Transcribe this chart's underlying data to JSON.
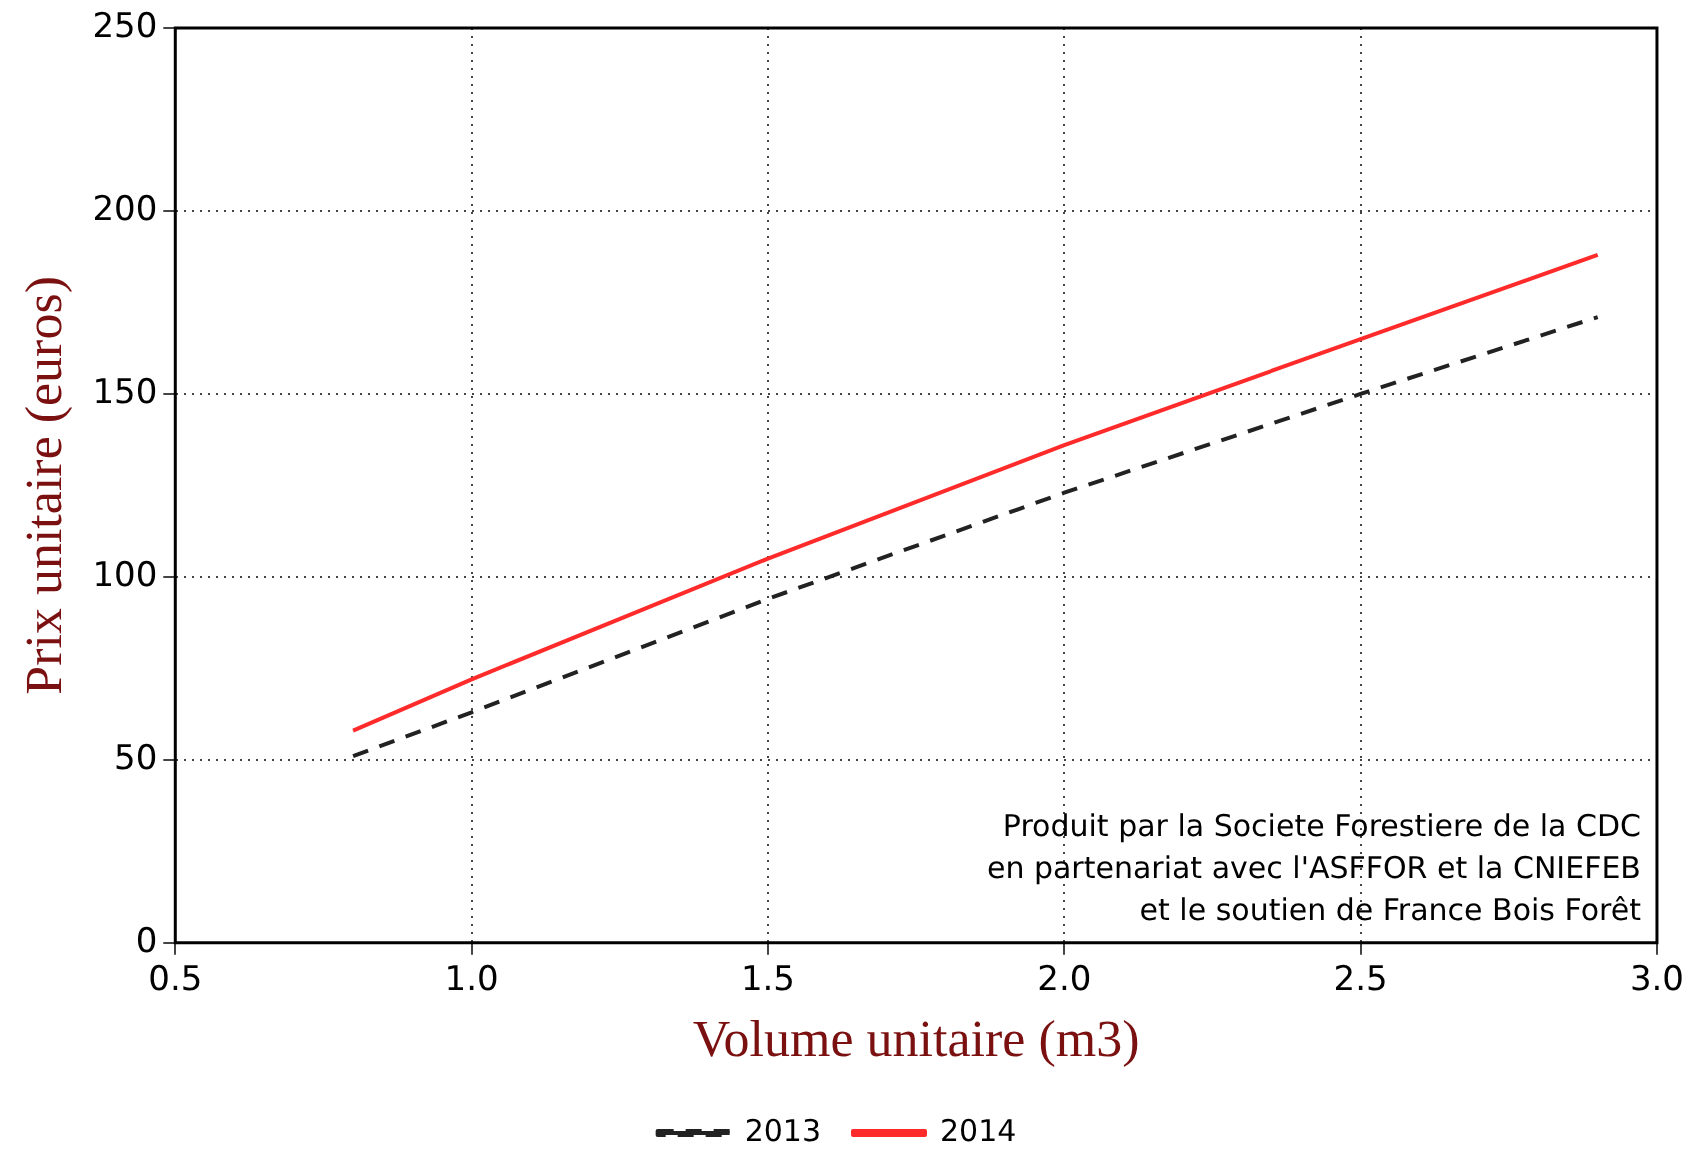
{
  "chart_data": {
    "type": "line",
    "xlabel": "Volume unitaire (m3)",
    "ylabel": "Prix unitaire (euros)",
    "x": [
      0.8,
      1.0,
      1.5,
      2.0,
      2.5,
      2.9
    ],
    "series": [
      {
        "name": "2013",
        "color": "#222222",
        "line_style": "dashed",
        "values": [
          51,
          63,
          94,
          123,
          150,
          171
        ]
      },
      {
        "name": "2014",
        "color": "#ff2a2a",
        "line_style": "solid",
        "values": [
          58,
          72,
          105,
          136,
          165,
          188
        ]
      }
    ],
    "xlim": [
      0.5,
      3.0
    ],
    "xticks": [
      {
        "value": 0.5,
        "label": "0.5"
      },
      {
        "value": 1.0,
        "label": "1.0"
      },
      {
        "value": 1.5,
        "label": "1.5"
      },
      {
        "value": 2.0,
        "label": "2.0"
      },
      {
        "value": 2.5,
        "label": "2.5"
      },
      {
        "value": 3.0,
        "label": "3.0"
      }
    ],
    "ylim": [
      0,
      250
    ],
    "yticks": [
      0,
      50,
      100,
      150,
      200,
      250
    ],
    "grid": true,
    "legend": "bottom",
    "marker": "none",
    "annotations": [
      "Produit par la Societe Forestiere de la CDC\nen partenariat avec l'ASFFOR et la CNIEFEB\net le soutien de France Bois Forêt"
    ]
  }
}
